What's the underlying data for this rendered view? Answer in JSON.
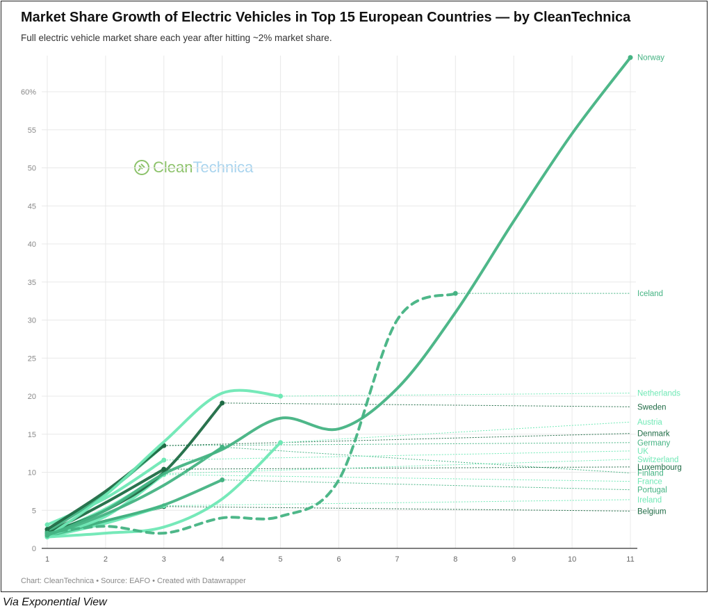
{
  "title": "Market Share Growth of Electric Vehicles in Top 15 European Countries — by CleanTechnica",
  "subtitle": "Full electric vehicle market share each year after hitting ~2% market share.",
  "footer": "Chart: CleanTechnica • Source: EAFO • Created with Datawrapper",
  "caption": "Via Exponential View",
  "logo": {
    "part1": "Clean",
    "part2": "Technica"
  },
  "chart_data": {
    "type": "line",
    "title": "Market Share Growth of Electric Vehicles in Top 15 European Countries — by CleanTechnica",
    "xlabel": "",
    "ylabel": "",
    "xlim": [
      1,
      11
    ],
    "ylim": [
      0,
      65
    ],
    "x_ticks": [
      "1",
      "2",
      "3",
      "4",
      "5",
      "6",
      "7",
      "8",
      "9",
      "10",
      "11"
    ],
    "y_ticks": [
      "0",
      "5",
      "10",
      "15",
      "20",
      "25",
      "30",
      "35",
      "40",
      "45",
      "50",
      "55",
      "60%"
    ],
    "y_tick_values": [
      0,
      5,
      10,
      15,
      20,
      25,
      30,
      35,
      40,
      45,
      50,
      55,
      60
    ],
    "grid": true,
    "colors": {
      "dark": "#1f6b45",
      "medium": "#45b383",
      "light": "#6fe8b5"
    },
    "series": [
      {
        "name": "Norway",
        "tone": "medium",
        "values": [
          1.7,
          5,
          9.8,
          13,
          17.1,
          15.7,
          21,
          31,
          43,
          54.5,
          64.5
        ],
        "label_y": 64.5
      },
      {
        "name": "Iceland",
        "tone": "medium",
        "dashed": true,
        "values": [
          2,
          2.9,
          2,
          4,
          4.2,
          9,
          30,
          33.5
        ],
        "label_y": 33.5
      },
      {
        "name": "Netherlands",
        "tone": "light",
        "values": [
          1.5,
          7,
          14,
          20.4,
          20
        ],
        "label_y": 20.4
      },
      {
        "name": "Sweden",
        "tone": "dark",
        "values": [
          2,
          5,
          10,
          19.1
        ],
        "label_y": 18.6
      },
      {
        "name": "Austria",
        "tone": "light",
        "values": [
          1.5,
          2,
          2.8,
          6.5,
          13.9
        ],
        "label_y": 16.6
      },
      {
        "name": "Denmark",
        "tone": "dark",
        "values": [
          2.5,
          7.5,
          13.5
        ],
        "label_y": 15.1
      },
      {
        "name": "Germany",
        "tone": "medium",
        "values": [
          2.2,
          7.2,
          13.5
        ],
        "label_y": 13.9
      },
      {
        "name": "UK",
        "tone": "light",
        "values": [
          3.1,
          6.6,
          11.6
        ],
        "label_y": 12.8
      },
      {
        "name": "Switzerland",
        "tone": "light",
        "values": [
          1.8,
          5.2,
          9.8
        ],
        "label_y": 11.7
      },
      {
        "name": "Luxembourg",
        "tone": "dark",
        "values": [
          2,
          6,
          10.4
        ],
        "label_y": 10.7
      },
      {
        "name": "Finland",
        "tone": "medium",
        "values": [
          1.7,
          4.5,
          8.3,
          13.3
        ],
        "label_y": 9.9
      },
      {
        "name": "France",
        "tone": "light",
        "values": [
          1.7,
          4.2,
          9.7
        ],
        "label_y": 8.8
      },
      {
        "name": "Portugal",
        "tone": "medium",
        "values": [
          1.6,
          3.6,
          5.7,
          9
        ],
        "label_y": 7.7
      },
      {
        "name": "Ireland",
        "tone": "light",
        "values": [
          1.5,
          3.3,
          5.6
        ],
        "label_y": 6.4
      },
      {
        "name": "Belgium",
        "tone": "dark",
        "values": [
          1.8,
          3.6,
          5.5
        ],
        "label_y": 4.9
      }
    ]
  }
}
